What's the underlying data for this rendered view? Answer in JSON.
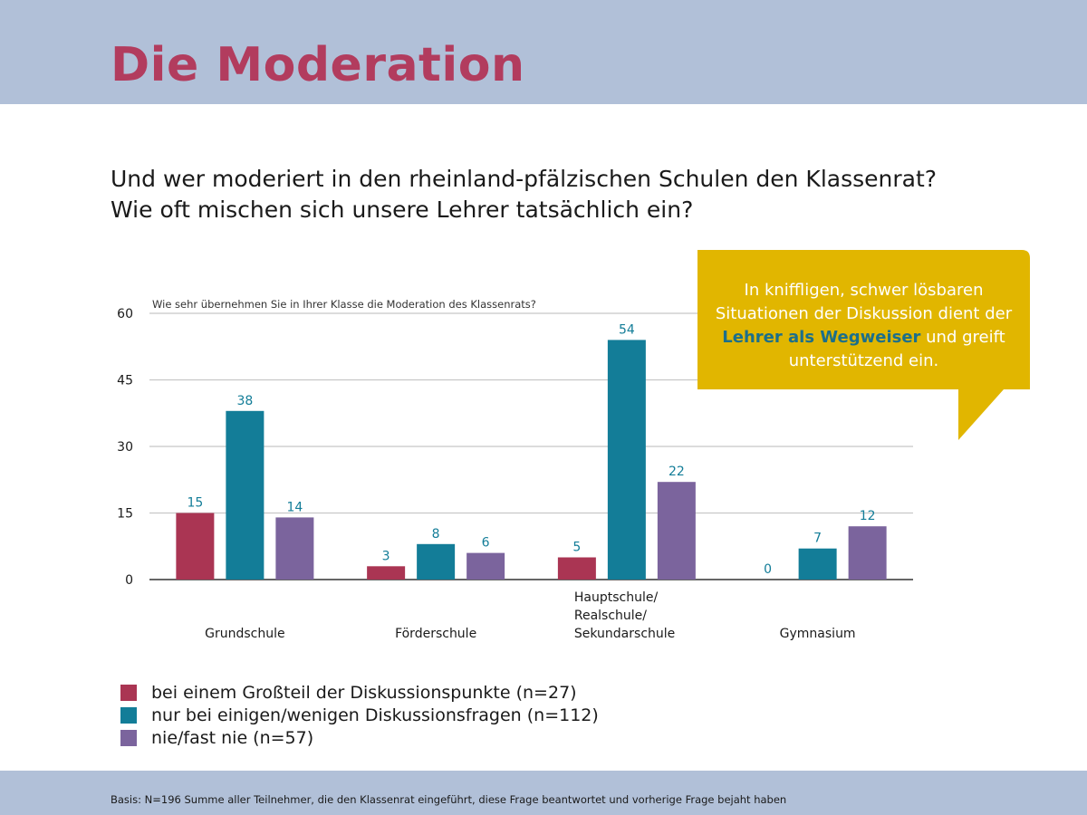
{
  "page": {
    "title": "Die Moderation",
    "question_lines": [
      "Und wer moderiert in den rheinland-pfälzischen Schulen den Klassenrat?",
      "Wie oft mischen sich unsere Lehrer tatsächlich ein?"
    ],
    "footnote": "Basis: N=196 Summe aller Teilnehmer, die den Klassenrat eingeführt, diese Frage beantwortet und vorherige Frage bejaht haben"
  },
  "callout": {
    "text_before": "In kniffligen, schwer lösbaren Situationen der Diskussion dient der ",
    "text_bold": "Lehrer als Wegweiser",
    "text_after": " und greift unterstützend ein.",
    "background": "#e1b600",
    "highlight_color": "#1c6f8a"
  },
  "chart_data": {
    "type": "bar",
    "title": "Wie sehr übernehmen Sie in Ihrer Klasse die Moderation des Klassenrats?",
    "xlabel": "",
    "ylabel": "",
    "categories": [
      [
        "Grundschule"
      ],
      [
        "Förderschule"
      ],
      [
        "Hauptschule/",
        "Realschule/",
        "Sekundarschule"
      ],
      [
        "Gymnasium"
      ]
    ],
    "series": [
      {
        "name": "bei einem Großteil der Diskussionspunkte (n=27)",
        "color": "#aa3553",
        "values": [
          15,
          3,
          5,
          0
        ]
      },
      {
        "name": "nur bei einigen/wenigen Diskussionsfragen (n=112)",
        "color": "#137d98",
        "values": [
          38,
          8,
          54,
          7
        ]
      },
      {
        "name": "nie/fast nie (n=57)",
        "color": "#7b649d",
        "values": [
          14,
          6,
          22,
          12
        ]
      }
    ],
    "ylim": [
      0,
      60
    ],
    "yticks": [
      0,
      15,
      30,
      45,
      60
    ],
    "grid": true,
    "legend_position": "bottom-left",
    "value_label_color": "#137d98"
  }
}
